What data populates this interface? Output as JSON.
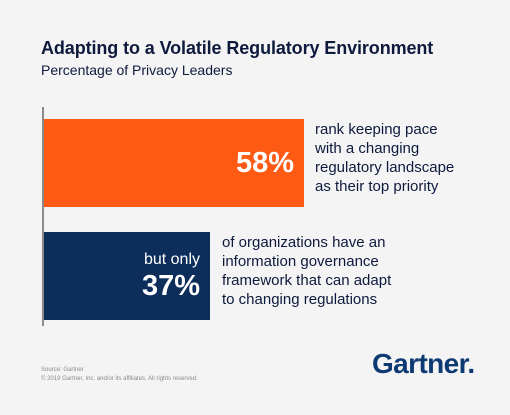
{
  "chart_data": {
    "type": "bar",
    "orientation": "horizontal",
    "title": "Adapting to a Volatile Regulatory Environment",
    "subtitle": "Percentage of Privacy Leaders",
    "unit": "%",
    "xlim": [
      0,
      100
    ],
    "grid": false,
    "bars": [
      {
        "value": 58,
        "value_label": "58%",
        "prefix": "",
        "color": "#fe5a13",
        "description_lines": [
          "rank keeping pace",
          "with a changing",
          "regulatory landscape",
          "as their top priority"
        ]
      },
      {
        "value": 37,
        "value_label": "37%",
        "prefix": "but only",
        "color": "#0d2d5b",
        "description_lines": [
          "of organizations have an",
          "information governance",
          "framework that can adapt",
          "to changing regulations"
        ]
      }
    ]
  },
  "footer": {
    "source": "Source: Gartner",
    "copyright": "© 2019 Gartner, Inc. and/or its affiliates. All rights reserved.",
    "logo": "Gartner."
  }
}
